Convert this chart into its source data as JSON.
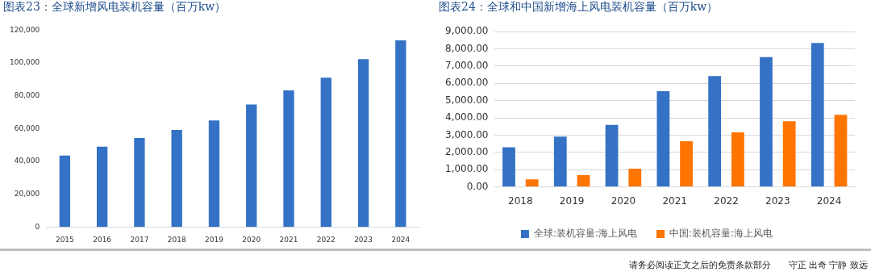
{
  "chart_data": [
    {
      "type": "bar",
      "title": "图表23：全球新增风电装机容量（百万kw）",
      "categories": [
        "2015",
        "2016",
        "2017",
        "2018",
        "2019",
        "2020",
        "2021",
        "2022",
        "2023",
        "2024"
      ],
      "series": [
        {
          "color": "#3572c6",
          "values": [
            43500,
            49000,
            54200,
            59200,
            65000,
            74700,
            83300,
            91000,
            102400,
            113800
          ]
        }
      ],
      "ylim": [
        0,
        120000
      ],
      "yticks": [
        {
          "value": 0,
          "label": "0"
        },
        {
          "value": 20000,
          "label": "20,000"
        },
        {
          "value": 40000,
          "label": "40,000"
        },
        {
          "value": 60000,
          "label": "60,000"
        },
        {
          "value": 80000,
          "label": "80,000"
        },
        {
          "value": 100000,
          "label": "100,000"
        },
        {
          "value": 120000,
          "label": "120,000"
        }
      ],
      "grid": false,
      "legend": false
    },
    {
      "type": "bar",
      "title": "图表24：全球和中国新增海上风电装机容量（百万kw）",
      "categories": [
        "2018",
        "2019",
        "2020",
        "2021",
        "2022",
        "2023",
        "2024"
      ],
      "series": [
        {
          "name": "全球:装机容量:海上风电",
          "color": "#3572c6",
          "values": [
            2300,
            2920,
            3590,
            5550,
            6430,
            7530,
            8340
          ]
        },
        {
          "name": "中国:装机容量:海上风电",
          "color": "#ff7500",
          "values": [
            440,
            680,
            1060,
            2650,
            3160,
            3800,
            4180
          ]
        }
      ],
      "ylim": [
        0,
        9000
      ],
      "yticks": [
        {
          "value": 0,
          "label": "0.00"
        },
        {
          "value": 1000,
          "label": "1,000.00"
        },
        {
          "value": 2000,
          "label": "2,000.00"
        },
        {
          "value": 3000,
          "label": "3,000.00"
        },
        {
          "value": 4000,
          "label": "4,000.00"
        },
        {
          "value": 5000,
          "label": "5,000.00"
        },
        {
          "value": 6000,
          "label": "6,000.00"
        },
        {
          "value": 7000,
          "label": "7,000.00"
        },
        {
          "value": 8000,
          "label": "8,000.00"
        },
        {
          "value": 9000,
          "label": "9,000.00"
        }
      ],
      "grid": "y",
      "legend": "bottom",
      "annotations": [
        "请务必阅读正文之后的免责条款部分　　守正 出奇 宁静 致远"
      ]
    }
  ]
}
